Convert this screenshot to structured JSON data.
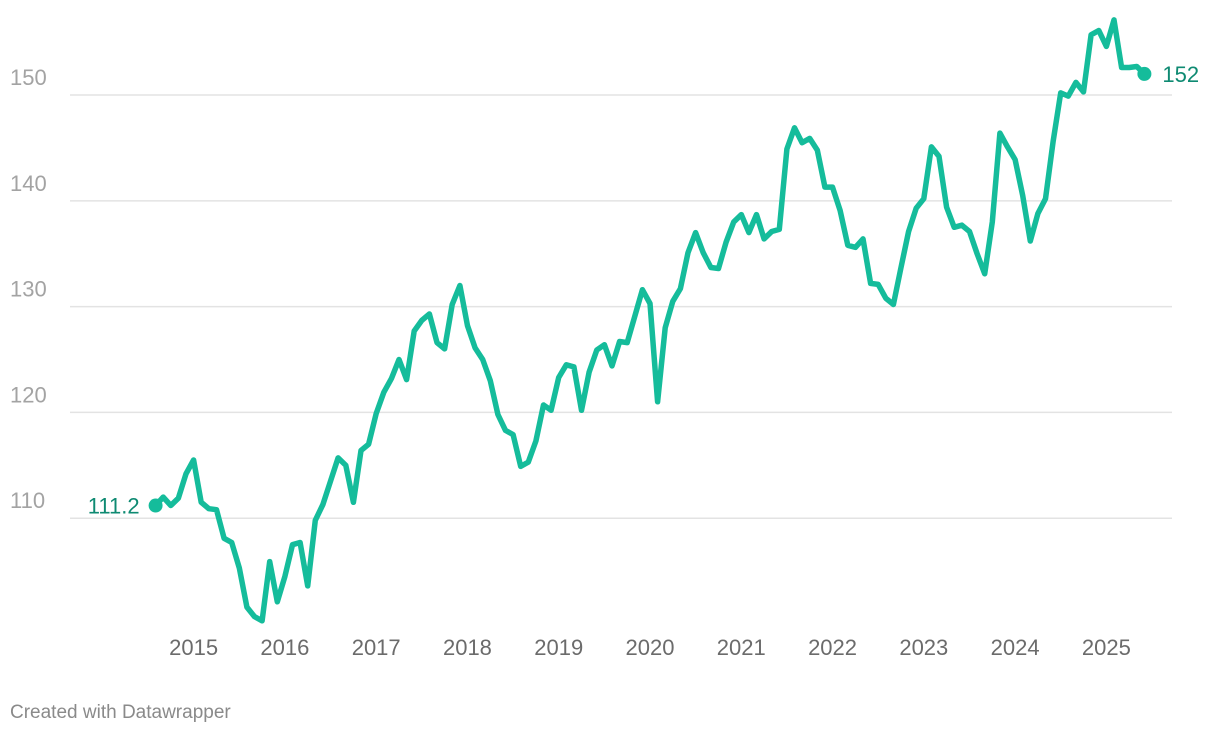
{
  "chart_data": {
    "type": "line",
    "title": "",
    "xlabel": "",
    "ylabel": "",
    "x_range": [
      2014.5,
      2025.5
    ],
    "ylim": [
      100,
      157
    ],
    "y_ticks": [
      110,
      120,
      130,
      140,
      150
    ],
    "x_ticks": [
      2015,
      2016,
      2017,
      2018,
      2019,
      2020,
      2021,
      2022,
      2023,
      2024,
      2025
    ],
    "grid": "horizontal",
    "legend": "none",
    "series": [
      {
        "color": "#15bc9b",
        "points": [
          [
            2014.5833,
            111.2
          ],
          [
            2014.6667,
            112.0
          ],
          [
            2014.75,
            111.2
          ],
          [
            2014.8333,
            111.9
          ],
          [
            2014.9167,
            114.2
          ],
          [
            2015.0,
            115.5
          ],
          [
            2015.0833,
            111.5
          ],
          [
            2015.1667,
            110.9
          ],
          [
            2015.25,
            110.8
          ],
          [
            2015.3333,
            108.1
          ],
          [
            2015.4167,
            107.7
          ],
          [
            2015.5,
            105.3
          ],
          [
            2015.5833,
            101.6
          ],
          [
            2015.6667,
            100.7
          ],
          [
            2015.75,
            100.3
          ],
          [
            2015.8333,
            105.9
          ],
          [
            2015.9167,
            102.1
          ],
          [
            2016.0,
            104.5
          ],
          [
            2016.0833,
            107.5
          ],
          [
            2016.1667,
            107.7
          ],
          [
            2016.25,
            103.6
          ],
          [
            2016.3333,
            109.8
          ],
          [
            2016.4167,
            111.3
          ],
          [
            2016.5,
            113.5
          ],
          [
            2016.5833,
            115.7
          ],
          [
            2016.6667,
            115.0
          ],
          [
            2016.75,
            111.5
          ],
          [
            2016.8333,
            116.4
          ],
          [
            2016.9167,
            117.0
          ],
          [
            2017.0,
            119.9
          ],
          [
            2017.0833,
            121.9
          ],
          [
            2017.1667,
            123.2
          ],
          [
            2017.25,
            125.0
          ],
          [
            2017.3333,
            123.1
          ],
          [
            2017.4167,
            127.7
          ],
          [
            2017.5,
            128.7
          ],
          [
            2017.5833,
            129.3
          ],
          [
            2017.6667,
            126.6
          ],
          [
            2017.75,
            126.0
          ],
          [
            2017.8333,
            130.2
          ],
          [
            2017.9167,
            132.0
          ],
          [
            2018.0,
            128.2
          ],
          [
            2018.0833,
            126.1
          ],
          [
            2018.1667,
            125.0
          ],
          [
            2018.25,
            123.0
          ],
          [
            2018.3333,
            119.8
          ],
          [
            2018.4167,
            118.3
          ],
          [
            2018.5,
            117.9
          ],
          [
            2018.5833,
            114.9
          ],
          [
            2018.6667,
            115.3
          ],
          [
            2018.75,
            117.3
          ],
          [
            2018.8333,
            120.7
          ],
          [
            2018.9167,
            120.2
          ],
          [
            2019.0,
            123.3
          ],
          [
            2019.0833,
            124.5
          ],
          [
            2019.1667,
            124.3
          ],
          [
            2019.25,
            120.2
          ],
          [
            2019.3333,
            123.8
          ],
          [
            2019.4167,
            125.9
          ],
          [
            2019.5,
            126.4
          ],
          [
            2019.5833,
            124.4
          ],
          [
            2019.6667,
            126.7
          ],
          [
            2019.75,
            126.6
          ],
          [
            2019.8333,
            129.1
          ],
          [
            2019.9167,
            131.6
          ],
          [
            2020.0,
            130.3
          ],
          [
            2020.0833,
            121.0
          ],
          [
            2020.1667,
            128.0
          ],
          [
            2020.25,
            130.5
          ],
          [
            2020.3333,
            131.7
          ],
          [
            2020.4167,
            135.1
          ],
          [
            2020.5,
            137.0
          ],
          [
            2020.5833,
            135.1
          ],
          [
            2020.6667,
            133.7
          ],
          [
            2020.75,
            133.6
          ],
          [
            2020.8333,
            136.1
          ],
          [
            2020.9167,
            138.0
          ],
          [
            2021.0,
            138.7
          ],
          [
            2021.0833,
            137.0
          ],
          [
            2021.1667,
            138.7
          ],
          [
            2021.25,
            136.4
          ],
          [
            2021.3333,
            137.1
          ],
          [
            2021.4167,
            137.3
          ],
          [
            2021.5,
            144.9
          ],
          [
            2021.5833,
            146.9
          ],
          [
            2021.6667,
            145.5
          ],
          [
            2021.75,
            145.9
          ],
          [
            2021.8333,
            144.8
          ],
          [
            2021.9167,
            141.3
          ],
          [
            2022.0,
            141.3
          ],
          [
            2022.0833,
            139.1
          ],
          [
            2022.1667,
            135.8
          ],
          [
            2022.25,
            135.6
          ],
          [
            2022.3333,
            136.4
          ],
          [
            2022.4167,
            132.2
          ],
          [
            2022.5,
            132.1
          ],
          [
            2022.5833,
            130.8
          ],
          [
            2022.6667,
            130.2
          ],
          [
            2022.75,
            133.7
          ],
          [
            2022.8333,
            137.1
          ],
          [
            2022.9167,
            139.3
          ],
          [
            2023.0,
            140.2
          ],
          [
            2023.0833,
            145.1
          ],
          [
            2023.1667,
            144.2
          ],
          [
            2023.25,
            139.4
          ],
          [
            2023.3333,
            137.5
          ],
          [
            2023.4167,
            137.7
          ],
          [
            2023.5,
            137.1
          ],
          [
            2023.5833,
            135.0
          ],
          [
            2023.6667,
            133.1
          ],
          [
            2023.75,
            138.0
          ],
          [
            2023.8333,
            146.4
          ],
          [
            2023.9167,
            145.1
          ],
          [
            2024.0,
            143.9
          ],
          [
            2024.0833,
            140.5
          ],
          [
            2024.1667,
            136.2
          ],
          [
            2024.25,
            138.8
          ],
          [
            2024.3333,
            140.2
          ],
          [
            2024.4167,
            145.6
          ],
          [
            2024.5,
            150.2
          ],
          [
            2024.5833,
            149.9
          ],
          [
            2024.6667,
            151.2
          ],
          [
            2024.75,
            150.3
          ],
          [
            2024.8333,
            155.7
          ],
          [
            2024.9167,
            156.1
          ],
          [
            2025.0,
            154.6
          ],
          [
            2025.0833,
            157.1
          ],
          [
            2025.1667,
            152.6
          ],
          [
            2025.25,
            152.6
          ],
          [
            2025.3333,
            152.7
          ],
          [
            2025.4167,
            152.0
          ]
        ]
      }
    ],
    "annotations": [
      {
        "text": "111.2",
        "x": 2014.5833,
        "y": 111.2,
        "side": "left"
      },
      {
        "text": "152",
        "x": 2025.4167,
        "y": 152.0,
        "side": "right"
      }
    ],
    "colors": {
      "line": "#15bc9b",
      "label": "#0e8a72",
      "grid": "#e3e3e3",
      "ytick": "#a3a3a3",
      "xtick": "#6b6b6b"
    }
  },
  "footer": {
    "credit": "Created with Datawrapper"
  }
}
